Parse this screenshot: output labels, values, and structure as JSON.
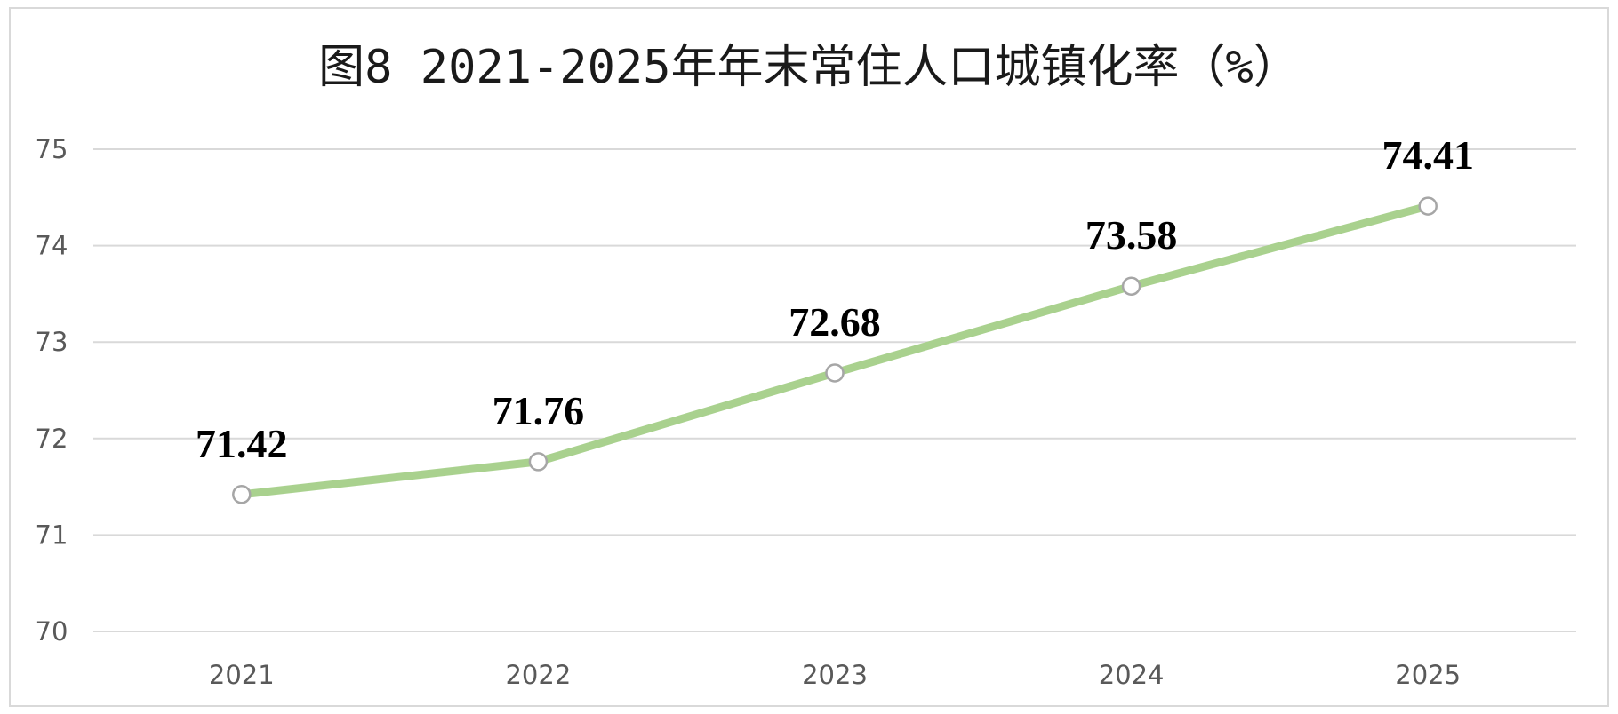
{
  "chart_data": {
    "type": "line",
    "title": "图8 2021-2025年年末常住人口城镇化率（%）",
    "categories": [
      "2021",
      "2022",
      "2023",
      "2024",
      "2025"
    ],
    "series": [
      {
        "values": [
          71.42,
          71.76,
          72.68,
          73.58,
          74.41
        ]
      }
    ],
    "data_labels": [
      "71.42",
      "71.76",
      "72.68",
      "73.58",
      "74.41"
    ],
    "y_ticks": [
      "70",
      "71",
      "72",
      "73",
      "74",
      "75"
    ],
    "ylim": [
      70,
      75
    ],
    "xlabel": "",
    "ylabel": "",
    "grid": true,
    "legend": "none",
    "colors": {
      "line": "#a9d18e",
      "marker_edge": "#a6a6a6",
      "grid": "#d9d9d9"
    }
  }
}
